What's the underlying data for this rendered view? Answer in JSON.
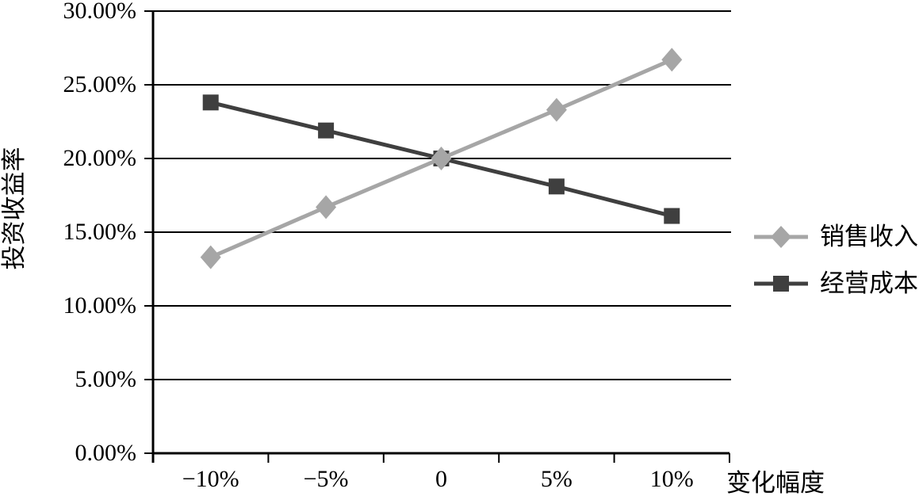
{
  "chart_data": {
    "type": "line",
    "title": "",
    "xlabel": "变化幅度",
    "ylabel": "投资收益率",
    "x_tick_labels": [
      "−10%",
      "−5%",
      "0",
      "5%",
      "10%"
    ],
    "x_values": [
      -10,
      -5,
      0,
      5,
      10
    ],
    "y_tick_labels": [
      "0.00%",
      "5.00%",
      "10.00%",
      "15.00%",
      "20.00%",
      "25.00%",
      "30.00%"
    ],
    "ylim": [
      0,
      30
    ],
    "y_step": 5,
    "grid": true,
    "legend_position": "right",
    "axis_color": "#000000",
    "background_color": "#ffffff",
    "series": [
      {
        "name": "销售收入",
        "marker": "diamond",
        "color": "#a6a6a6",
        "values": [
          13.3,
          16.7,
          20.0,
          23.3,
          26.7
        ]
      },
      {
        "name": "经营成本",
        "marker": "square",
        "color": "#3f3f3f",
        "values": [
          23.8,
          21.9,
          20.0,
          18.1,
          16.1
        ]
      }
    ]
  }
}
